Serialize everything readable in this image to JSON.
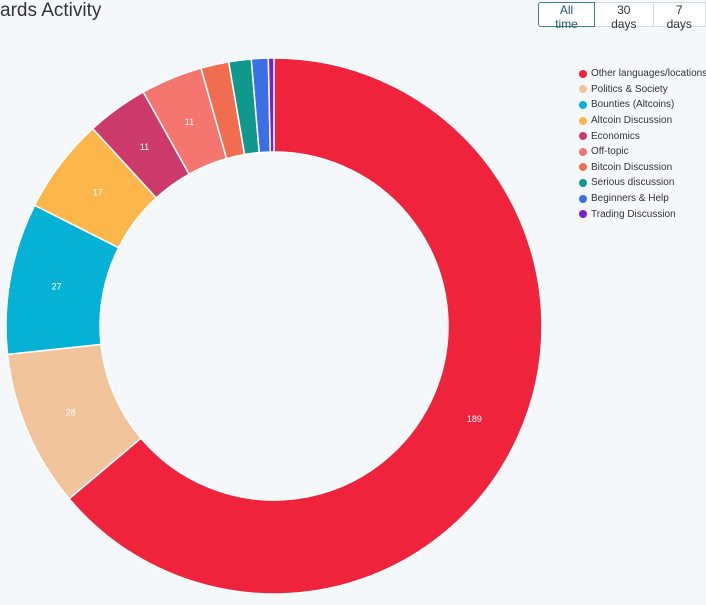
{
  "header": {
    "title": "ards Activity",
    "range_tabs": [
      {
        "label": "All time",
        "active": true
      },
      {
        "label": "30 days",
        "active": false
      },
      {
        "label": "7 days",
        "active": false
      }
    ]
  },
  "chart_data": {
    "type": "pie",
    "legend_position": "right",
    "slices": [
      {
        "name": "Other languages/locations",
        "value": 189,
        "color": "#ef233c",
        "label": "189"
      },
      {
        "name": "Politics & Society",
        "value": 28,
        "color": "#f2c49c",
        "label": "28"
      },
      {
        "name": "Bounties (Altcoins)",
        "value": 27,
        "color": "#05b2d6",
        "label": "27"
      },
      {
        "name": "Altcoin Discussion",
        "value": 17,
        "color": "#fdb64a",
        "label": "17"
      },
      {
        "name": "Economics",
        "value": 11,
        "color": "#cb3a6b",
        "label": "11"
      },
      {
        "name": "Off-topic",
        "value": 11,
        "color": "#f5766f",
        "label": "11"
      },
      {
        "name": "Bitcoin Discussion",
        "value": 5,
        "color": "#f06d4f",
        "label": ""
      },
      {
        "name": "Serious discussion",
        "value": 4,
        "color": "#11988e",
        "label": ""
      },
      {
        "name": "Beginners & Help",
        "value": 3,
        "color": "#3a6fe6",
        "label": ""
      },
      {
        "name": "Trading Discussion",
        "value": 1,
        "color": "#7a1ed0",
        "label": ""
      }
    ]
  }
}
